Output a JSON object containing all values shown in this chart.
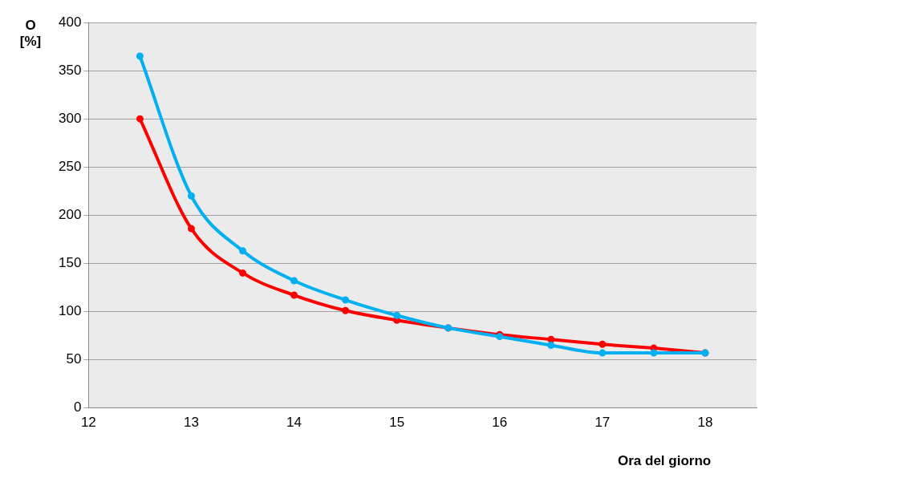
{
  "chart_data": {
    "type": "line",
    "xlabel": "Ora del giorno",
    "ylabel": "O [%]",
    "x": [
      12.5,
      13,
      13.5,
      14,
      14.5,
      15,
      15.5,
      16,
      16.5,
      17,
      17.5,
      18
    ],
    "series": [
      {
        "color": "#00b0f0",
        "values": [
          365,
          220,
          163,
          132,
          112,
          96,
          83,
          74,
          65,
          57,
          57,
          57
        ]
      },
      {
        "color": "#ff0000",
        "values": [
          300,
          186,
          140,
          117,
          101,
          91,
          83,
          76,
          71,
          66,
          62,
          57
        ]
      }
    ],
    "xlim": [
      12,
      18.5
    ],
    "xticks": [
      12,
      13,
      14,
      15,
      16,
      17,
      18
    ],
    "ylim": [
      0,
      400
    ],
    "yticks": [
      0,
      50,
      100,
      150,
      200,
      250,
      300,
      350,
      400
    ],
    "grid": "y",
    "marker": "circle",
    "line_style": "solid"
  }
}
